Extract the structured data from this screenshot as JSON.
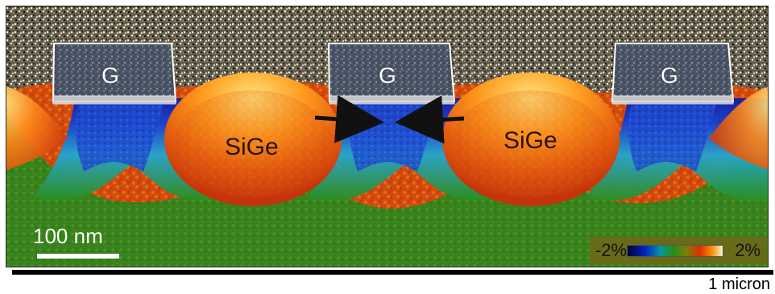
{
  "figure": {
    "gates": [
      {
        "label": "G"
      },
      {
        "label": "G"
      },
      {
        "label": "G"
      }
    ],
    "sige_regions": [
      {
        "label": "SiGe"
      },
      {
        "label": "SiGe"
      }
    ],
    "scale_bar": {
      "label": "100 nm"
    },
    "colorbar": {
      "min_label": "-2%",
      "max_label": "2%"
    },
    "length_bar": {
      "label": "1 micron"
    }
  }
}
